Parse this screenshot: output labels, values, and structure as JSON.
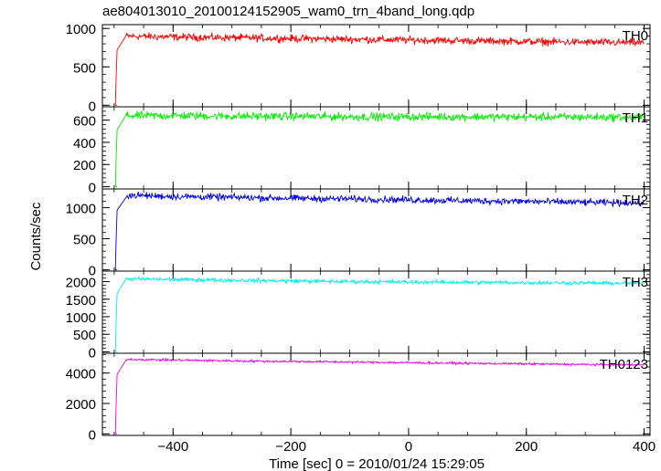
{
  "title": "ae804013010_20100124152905_wam0_trn_4band_long.qdp",
  "chart_data": {
    "type": "line",
    "title": "ae804013010_20100124152905_wam0_trn_4band_long.qdp",
    "xlabel": "Time [sec] 0 = 2010/01/24 15:29:05",
    "ylabel": "Counts/sec",
    "xlim": [
      -520,
      410
    ],
    "x_ticks": [
      -400,
      -200,
      0,
      200,
      400
    ],
    "x_tick_labels": [
      "−400",
      "−200",
      "0",
      "200",
      "400"
    ],
    "grid": false,
    "panels": [
      {
        "name": "TH0",
        "color": "#ff0000",
        "ylim": [
          -20,
          1050
        ],
        "y_ticks": [
          0,
          500,
          1000
        ],
        "y_tick_labels": [
          "0",
          "500",
          "1000"
        ],
        "onset_x": -495,
        "pre_level": 0,
        "x": [
          -495,
          -480,
          -400,
          -300,
          -200,
          -100,
          0,
          100,
          200,
          300,
          400
        ],
        "values": [
          0,
          900,
          890,
          880,
          870,
          860,
          850,
          840,
          830,
          820,
          815
        ],
        "noise": 40
      },
      {
        "name": "TH1",
        "color": "#00ee00",
        "ylim": [
          -20,
          720
        ],
        "y_ticks": [
          0,
          200,
          400,
          600
        ],
        "y_tick_labels": [
          "0",
          "200",
          "400",
          "600"
        ],
        "onset_x": -495,
        "pre_level": 0,
        "x": [
          -495,
          -480,
          -400,
          -300,
          -200,
          -100,
          0,
          100,
          200,
          300,
          400
        ],
        "values": [
          0,
          640,
          640,
          635,
          635,
          630,
          630,
          630,
          628,
          628,
          625
        ],
        "noise": 30
      },
      {
        "name": "TH2",
        "color": "#0000ee",
        "ylim": [
          -20,
          1300
        ],
        "y_ticks": [
          0,
          500,
          1000
        ],
        "y_tick_labels": [
          "0",
          "500",
          "1000"
        ],
        "onset_x": -495,
        "pre_level": 0,
        "x": [
          -495,
          -480,
          -400,
          -300,
          -200,
          -100,
          0,
          100,
          200,
          300,
          400
        ],
        "values": [
          0,
          1200,
          1180,
          1165,
          1150,
          1140,
          1125,
          1110,
          1100,
          1085,
          1075
        ],
        "noise": 45
      },
      {
        "name": "TH3",
        "color": "#00eeee",
        "ylim": [
          -40,
          2300
        ],
        "y_ticks": [
          0,
          500,
          1000,
          1500,
          2000
        ],
        "y_tick_labels": [
          "0",
          "500",
          "1000",
          "1500",
          "2000"
        ],
        "onset_x": -495,
        "pre_level": 0,
        "x": [
          -495,
          -480,
          -400,
          -300,
          -200,
          -100,
          0,
          100,
          200,
          300,
          400
        ],
        "values": [
          0,
          2080,
          2060,
          2040,
          2020,
          2000,
          1990,
          1980,
          1970,
          1960,
          1950
        ],
        "noise": 45
      },
      {
        "name": "TH0123",
        "color": "#ee00ee",
        "ylim": [
          -100,
          5300
        ],
        "y_ticks": [
          0,
          2000,
          4000
        ],
        "y_tick_labels": [
          "0",
          "2000",
          "4000"
        ],
        "onset_x": -495,
        "pre_level": 0,
        "x": [
          -495,
          -480,
          -400,
          -300,
          -200,
          -100,
          0,
          100,
          200,
          300,
          400
        ],
        "values": [
          0,
          4900,
          4850,
          4800,
          4760,
          4720,
          4680,
          4640,
          4600,
          4560,
          4530
        ],
        "noise": 60
      }
    ]
  }
}
